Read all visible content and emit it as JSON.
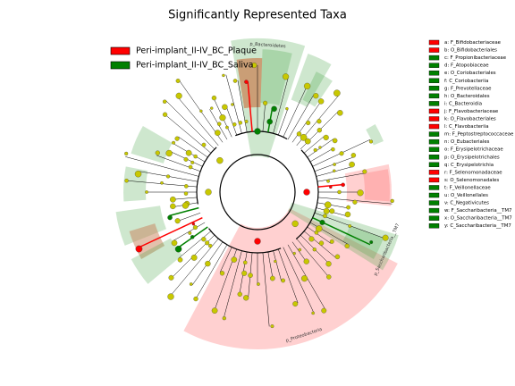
{
  "title": "Significantly Represented Taxa",
  "legend": [
    {
      "label": "Peri-implant_II-IV_BC_Plaque",
      "color": "#ff0000"
    },
    {
      "label": "Peri-implant_II-IV_BC_Saliva",
      "color": "#008000"
    }
  ],
  "key": [
    {
      "label": "a: F_Bifidobacteriaceae",
      "color": "#ff0000"
    },
    {
      "label": "b: O_Bifidobacteriales",
      "color": "#ff0000"
    },
    {
      "label": "c: F_Propionibacteriaceae",
      "color": "#008000"
    },
    {
      "label": "d: F_Atopobiaceae",
      "color": "#008000"
    },
    {
      "label": "e: O_Coriobacteriales",
      "color": "#008000"
    },
    {
      "label": "f: C_Coriobacteriia",
      "color": "#008000"
    },
    {
      "label": "g: F_Prevotellaceae",
      "color": "#008000"
    },
    {
      "label": "h: O_Bacteroidales",
      "color": "#008000"
    },
    {
      "label": "i: C_Bacteroidia",
      "color": "#008000"
    },
    {
      "label": "j: F_Flavobacteriaceae",
      "color": "#ff0000"
    },
    {
      "label": "k: O_Flavobacteriales",
      "color": "#ff0000"
    },
    {
      "label": "l: C_Flavobacteriia",
      "color": "#ff0000"
    },
    {
      "label": "m: F_Peptostreptococcaceae",
      "color": "#008000"
    },
    {
      "label": "n: O_Eubacteriales",
      "color": "#008000"
    },
    {
      "label": "o: F_Erysipelotrichaceae",
      "color": "#008000"
    },
    {
      "label": "p: O_Erysipelotrichales",
      "color": "#008000"
    },
    {
      "label": "q: C_Erysipelotrichia",
      "color": "#008000"
    },
    {
      "label": "r: F_Selenomonadaceae",
      "color": "#ff0000"
    },
    {
      "label": "s: O_Selenomonadales",
      "color": "#ff0000"
    },
    {
      "label": "t: F_Veillonellaceae",
      "color": "#008000"
    },
    {
      "label": "u: O_Veillonellales",
      "color": "#008000"
    },
    {
      "label": "v: C_Negativicutes",
      "color": "#008000"
    },
    {
      "label": "w: F_Saccharibacteria__TM7",
      "color": "#008000"
    },
    {
      "label": "x: O_Saccharibacteria__TM7",
      "color": "#008000"
    },
    {
      "label": "y: C_Saccharibacteria__TM7",
      "color": "#008000"
    }
  ],
  "clade_labels": [
    "p_Bacteroidetes",
    "p_Proteobacteria",
    "p_Saccharibacteria__TM7"
  ]
}
